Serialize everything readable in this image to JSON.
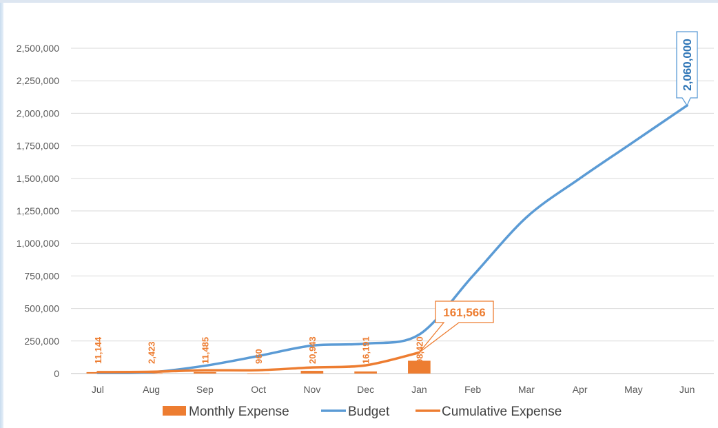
{
  "chart_data": {
    "type": "bar",
    "categories": [
      "Jul",
      "Aug",
      "Sep",
      "Oct",
      "Nov",
      "Dec",
      "Jan",
      "Feb",
      "Mar",
      "Apr",
      "May",
      "Jun"
    ],
    "y_ticks": [
      "0",
      "250,000",
      "500,000",
      "750,000",
      "1,000,000",
      "1,250,000",
      "1,500,000",
      "1,750,000",
      "2,000,000",
      "2,250,000",
      "2,500,000"
    ],
    "ylim": [
      0,
      2500000
    ],
    "grid": true,
    "legend_position": "bottom",
    "series": [
      {
        "name": "Monthly Expense",
        "type": "bar",
        "color": "#ed7d31",
        "values": [
          11144,
          2423,
          11485,
          960,
          20943,
          16191,
          98420,
          null,
          null,
          null,
          null,
          null
        ],
        "labels": [
          "11,144",
          "2,423",
          "11,485",
          "960",
          "20,943",
          "16,191",
          "98,420",
          "",
          "",
          "",
          "",
          ""
        ]
      },
      {
        "name": "Budget",
        "type": "line",
        "color": "#5b9bd5",
        "values": [
          5000,
          10000,
          60000,
          135000,
          215000,
          230000,
          300000,
          750000,
          1200000,
          1500000,
          1780000,
          2060000
        ],
        "callout": {
          "index": 11,
          "label": "2,060,000"
        }
      },
      {
        "name": "Cumulative Expense",
        "type": "line",
        "color": "#ed7d31",
        "values": [
          11144,
          13567,
          25052,
          26012,
          46955,
          63146,
          161566,
          null,
          null,
          null,
          null,
          null
        ],
        "callout": {
          "index": 6,
          "label": "161,566"
        }
      }
    ]
  }
}
